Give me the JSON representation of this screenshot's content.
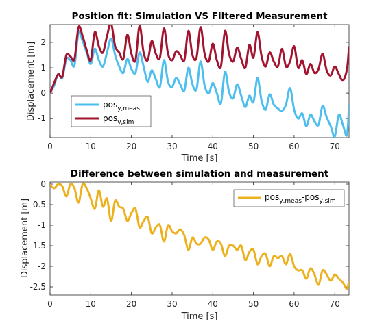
{
  "chart_data": [
    {
      "type": "line",
      "title": "Position fit: Simulation VS Filtered Measurement",
      "xlabel": "Time [s]",
      "ylabel": "Displacement [m]",
      "xlim": [
        0,
        73.5
      ],
      "ylim": [
        -1.75,
        2.7
      ],
      "xticks": [
        0,
        10,
        20,
        30,
        40,
        50,
        60,
        70
      ],
      "yticks": [
        -1,
        0,
        1,
        2
      ],
      "grid": false,
      "legend_position": "lower-left",
      "series": [
        {
          "name": "pos",
          "name_sub": "y,meas",
          "color": "#4DBEEE",
          "x": [
            0,
            1,
            2,
            3,
            4,
            5,
            6,
            7,
            8,
            9,
            10,
            11,
            12,
            13,
            14,
            15,
            16,
            17,
            18,
            19,
            20,
            21,
            22,
            23,
            24,
            25,
            26,
            27,
            28,
            29,
            30,
            31,
            32,
            33,
            34,
            35,
            36,
            37,
            38,
            39,
            40,
            41,
            42,
            43,
            44,
            45,
            46,
            47,
            48,
            49,
            50,
            51,
            52,
            53,
            54,
            55,
            56,
            57,
            58,
            59,
            60,
            61,
            62,
            63,
            64,
            65,
            66,
            67,
            68,
            69,
            70,
            71,
            72,
            73,
            73.5
          ],
          "y": [
            0,
            0.3,
            0.75,
            0.6,
            1.35,
            1.3,
            1.1,
            2.4,
            2.05,
            1.6,
            1.15,
            1.75,
            1.3,
            1.05,
            1.6,
            2.15,
            1.5,
            1.05,
            0.8,
            1.35,
            0.95,
            0.8,
            1.6,
            1.05,
            0.45,
            0.9,
            0.55,
            0.25,
            1.3,
            0.45,
            0.25,
            0.6,
            0.35,
            0.1,
            1.0,
            0.35,
            0.15,
            1.25,
            0.3,
            0.0,
            0.4,
            0.0,
            -0.4,
            0.85,
            0.05,
            -0.2,
            0.35,
            -0.1,
            -0.55,
            -0.1,
            -0.35,
            0.6,
            -0.3,
            -0.65,
            -0.05,
            -0.45,
            -0.6,
            -0.7,
            -0.45,
            0.2,
            -0.65,
            -1.0,
            -0.8,
            -1.3,
            -0.85,
            -1.1,
            -1.25,
            -0.5,
            -0.95,
            -1.3,
            -1.7,
            -0.85,
            -1.25,
            -1.65,
            -0.45
          ]
        },
        {
          "name": "pos",
          "name_sub": "y,sim",
          "color": "#A2142F",
          "x": [
            0,
            1,
            2,
            3,
            4,
            5,
            6,
            7,
            8,
            9,
            10,
            11,
            12,
            13,
            14,
            15,
            16,
            17,
            18,
            19,
            20,
            21,
            22,
            23,
            24,
            25,
            26,
            27,
            28,
            29,
            30,
            31,
            32,
            33,
            34,
            35,
            36,
            37,
            38,
            39,
            40,
            41,
            42,
            43,
            44,
            45,
            46,
            47,
            48,
            49,
            50,
            51,
            52,
            53,
            54,
            55,
            56,
            57,
            58,
            59,
            60,
            61,
            62,
            63,
            64,
            65,
            66,
            67,
            68,
            69,
            70,
            71,
            72,
            73,
            73.5
          ],
          "y": [
            0,
            0.4,
            0.75,
            0.65,
            1.5,
            1.45,
            1.35,
            2.6,
            2.25,
            1.7,
            1.3,
            2.4,
            1.85,
            1.6,
            2.25,
            2.75,
            1.85,
            1.6,
            1.35,
            2.3,
            1.55,
            1.3,
            2.65,
            1.6,
            1.3,
            2.05,
            1.55,
            1.4,
            2.55,
            1.55,
            1.3,
            1.65,
            1.5,
            1.3,
            2.45,
            1.5,
            1.4,
            2.6,
            1.55,
            1.25,
            1.95,
            1.3,
            1.05,
            2.45,
            1.55,
            1.25,
            1.8,
            1.35,
            1.0,
            1.9,
            1.4,
            2.4,
            1.45,
            1.05,
            1.6,
            1.25,
            1.05,
            1.75,
            1.05,
            1.25,
            1.85,
            1.0,
            1.3,
            0.75,
            1.15,
            0.8,
            0.95,
            1.55,
            0.9,
            0.7,
            1.05,
            0.75,
            0.5,
            0.95,
            1.85
          ]
        }
      ]
    },
    {
      "type": "line",
      "title": "Difference between simulation and measurement",
      "xlabel": "Time [s]",
      "ylabel": "Displacement [m]",
      "xlim": [
        0,
        73.5
      ],
      "ylim": [
        -2.7,
        0.05
      ],
      "xticks": [
        0,
        10,
        20,
        30,
        40,
        50,
        60,
        70
      ],
      "yticks": [
        -2.5,
        -2,
        -1.5,
        -1,
        -0.5,
        0
      ],
      "grid": false,
      "legend_position": "top-right",
      "series": [
        {
          "name": "pos",
          "name_sub": "y,meas",
          "name_mid": "-pos",
          "name_sub2": "y,sim",
          "color": "#EDB120",
          "x": [
            0,
            1,
            2,
            3,
            4,
            5,
            6,
            7,
            8,
            9,
            10,
            11,
            12,
            13,
            14,
            15,
            16,
            17,
            18,
            19,
            20,
            21,
            22,
            23,
            24,
            25,
            26,
            27,
            28,
            29,
            30,
            31,
            32,
            33,
            34,
            35,
            36,
            37,
            38,
            39,
            40,
            41,
            42,
            43,
            44,
            45,
            46,
            47,
            48,
            49,
            50,
            51,
            52,
            53,
            54,
            55,
            56,
            57,
            58,
            59,
            60,
            61,
            62,
            63,
            64,
            65,
            66,
            67,
            68,
            69,
            70,
            71,
            72,
            73,
            73.5
          ],
          "y": [
            0,
            -0.1,
            0,
            -0.05,
            -0.3,
            0,
            -0.1,
            -0.45,
            0,
            -0.1,
            -0.35,
            -0.6,
            -0.15,
            -0.55,
            -0.35,
            -0.9,
            -0.4,
            -0.55,
            -0.6,
            -0.9,
            -0.7,
            -0.6,
            -1.05,
            -0.9,
            -0.8,
            -1.2,
            -1.05,
            -1.0,
            -1.4,
            -1.0,
            -1.15,
            -1.2,
            -1.1,
            -1.25,
            -1.6,
            -1.3,
            -1.45,
            -1.45,
            -1.3,
            -1.35,
            -1.6,
            -1.4,
            -1.45,
            -1.75,
            -1.5,
            -1.5,
            -1.6,
            -1.5,
            -1.85,
            -1.65,
            -1.6,
            -1.95,
            -1.75,
            -1.7,
            -2.0,
            -1.75,
            -1.8,
            -1.75,
            -1.95,
            -1.7,
            -2.0,
            -2.1,
            -2.1,
            -2.3,
            -2.05,
            -2.2,
            -2.45,
            -2.1,
            -2.2,
            -2.35,
            -2.2,
            -2.3,
            -2.4,
            -2.55,
            -2.35
          ]
        }
      ]
    }
  ]
}
